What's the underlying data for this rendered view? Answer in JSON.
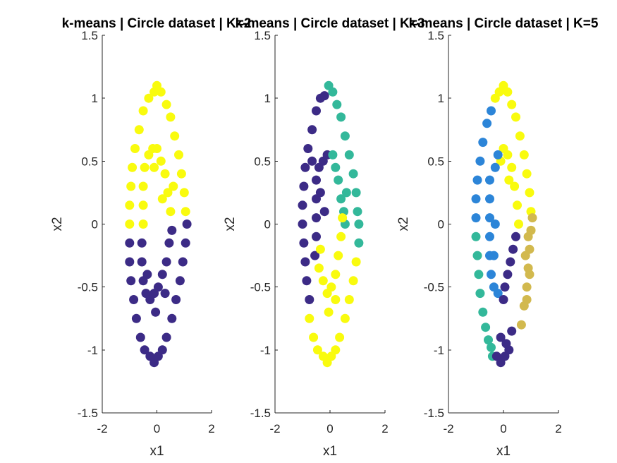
{
  "chart_data": [
    {
      "type": "scatter",
      "title": "k-means | Circle dataset | K=2",
      "xlabel": "x1",
      "ylabel": "x2",
      "xlim": [
        -2,
        2
      ],
      "ylim": [
        -1.5,
        1.5
      ],
      "xticks": [
        "-2",
        "0",
        "2"
      ],
      "yticks": [
        "-1.5",
        "-1",
        "-0.5",
        "0",
        "0.5",
        "1",
        "1.5"
      ],
      "grid": false,
      "series": [
        {
          "color": "#3c2b86",
          "points": [
            [
              -1.0,
              -0.15
            ],
            [
              -1.0,
              -0.3
            ],
            [
              -0.95,
              -0.45
            ],
            [
              -0.85,
              -0.6
            ],
            [
              -0.75,
              -0.75
            ],
            [
              -0.6,
              -0.9
            ],
            [
              -0.45,
              -1.0
            ],
            [
              -0.25,
              -1.05
            ],
            [
              -0.1,
              -1.1
            ],
            [
              0.05,
              -1.05
            ],
            [
              0.2,
              -1.0
            ],
            [
              0.35,
              -0.9
            ],
            [
              0.55,
              -0.75
            ],
            [
              0.7,
              -0.6
            ],
            [
              0.85,
              -0.45
            ],
            [
              0.95,
              -0.3
            ],
            [
              1.05,
              -0.15
            ],
            [
              1.1,
              0.0
            ],
            [
              -0.55,
              -0.15
            ],
            [
              -0.55,
              -0.3
            ],
            [
              -0.5,
              -0.45
            ],
            [
              -0.4,
              -0.55
            ],
            [
              -0.25,
              -0.6
            ],
            [
              -0.1,
              -0.55
            ],
            [
              0.05,
              -0.5
            ],
            [
              0.2,
              -0.4
            ],
            [
              0.35,
              -0.3
            ],
            [
              0.45,
              -0.15
            ],
            [
              0.55,
              -0.05
            ],
            [
              -0.05,
              -0.7
            ],
            [
              0.3,
              -0.55
            ],
            [
              -0.35,
              -0.4
            ]
          ]
        },
        {
          "color": "#f9fb0e",
          "points": [
            [
              -1.0,
              0.0
            ],
            [
              -1.0,
              0.15
            ],
            [
              -0.95,
              0.3
            ],
            [
              -0.9,
              0.45
            ],
            [
              -0.8,
              0.6
            ],
            [
              -0.65,
              0.75
            ],
            [
              -0.5,
              0.9
            ],
            [
              -0.3,
              1.0
            ],
            [
              -0.1,
              1.05
            ],
            [
              0.0,
              1.1
            ],
            [
              0.15,
              1.05
            ],
            [
              0.35,
              0.95
            ],
            [
              0.5,
              0.85
            ],
            [
              0.65,
              0.7
            ],
            [
              0.8,
              0.55
            ],
            [
              0.9,
              0.4
            ],
            [
              1.0,
              0.25
            ],
            [
              1.05,
              0.1
            ],
            [
              -0.5,
              0.0
            ],
            [
              -0.5,
              0.15
            ],
            [
              -0.5,
              0.3
            ],
            [
              -0.45,
              0.45
            ],
            [
              -0.3,
              0.55
            ],
            [
              -0.15,
              0.6
            ],
            [
              0.0,
              0.6
            ],
            [
              0.15,
              0.5
            ],
            [
              0.3,
              0.4
            ],
            [
              0.4,
              0.25
            ],
            [
              0.5,
              0.1
            ],
            [
              -0.1,
              0.45
            ],
            [
              0.2,
              0.2
            ],
            [
              0.6,
              0.3
            ]
          ]
        }
      ]
    },
    {
      "type": "scatter",
      "title": "k-means | Circle dataset | K=3",
      "xlabel": "x1",
      "ylabel": "x2",
      "xlim": [
        -2,
        2
      ],
      "ylim": [
        -1.5,
        1.5
      ],
      "xticks": [
        "-2",
        "0",
        "2"
      ],
      "yticks": [
        "-1.5",
        "-1",
        "-0.5",
        "0",
        "0.5",
        "1",
        "1.5"
      ],
      "grid": false,
      "series": [
        {
          "color": "#3c2b86",
          "points": [
            [
              -0.9,
              -0.3
            ],
            [
              -0.95,
              -0.15
            ],
            [
              -1.0,
              0.0
            ],
            [
              -1.0,
              0.15
            ],
            [
              -0.95,
              0.3
            ],
            [
              -0.9,
              0.45
            ],
            [
              -0.8,
              0.6
            ],
            [
              -0.65,
              0.75
            ],
            [
              -0.5,
              0.9
            ],
            [
              -0.35,
              1.0
            ],
            [
              -0.2,
              1.02
            ],
            [
              -0.85,
              -0.45
            ],
            [
              -0.75,
              -0.6
            ],
            [
              -0.5,
              -0.1
            ],
            [
              -0.5,
              0.05
            ],
            [
              -0.5,
              0.2
            ],
            [
              -0.5,
              0.35
            ],
            [
              -0.4,
              0.45
            ],
            [
              -0.25,
              0.5
            ],
            [
              -0.1,
              0.55
            ],
            [
              -0.35,
              0.25
            ],
            [
              -0.2,
              0.1
            ],
            [
              -0.55,
              -0.25
            ],
            [
              -0.65,
              0.5
            ]
          ]
        },
        {
          "color": "#33b89a",
          "points": [
            [
              -0.05,
              1.1
            ],
            [
              0.1,
              1.05
            ],
            [
              0.25,
              0.95
            ],
            [
              0.4,
              0.85
            ],
            [
              0.55,
              0.7
            ],
            [
              0.7,
              0.55
            ],
            [
              0.85,
              0.4
            ],
            [
              0.95,
              0.25
            ],
            [
              1.0,
              0.1
            ],
            [
              1.05,
              0.0
            ],
            [
              1.05,
              -0.15
            ],
            [
              0.1,
              0.55
            ],
            [
              0.2,
              0.45
            ],
            [
              0.3,
              0.35
            ],
            [
              0.4,
              0.2
            ],
            [
              0.5,
              0.1
            ],
            [
              0.55,
              0.0
            ],
            [
              0.6,
              0.25
            ]
          ]
        },
        {
          "color": "#f9fb0e",
          "points": [
            [
              -0.75,
              -0.75
            ],
            [
              -0.6,
              -0.9
            ],
            [
              -0.45,
              -1.0
            ],
            [
              -0.25,
              -1.05
            ],
            [
              -0.1,
              -1.1
            ],
            [
              0.05,
              -1.05
            ],
            [
              0.2,
              -1.0
            ],
            [
              0.35,
              -0.9
            ],
            [
              0.55,
              -0.75
            ],
            [
              0.7,
              -0.6
            ],
            [
              0.85,
              -0.45
            ],
            [
              0.95,
              -0.3
            ],
            [
              -0.4,
              -0.35
            ],
            [
              -0.25,
              -0.45
            ],
            [
              -0.1,
              -0.55
            ],
            [
              0.05,
              -0.5
            ],
            [
              0.2,
              -0.4
            ],
            [
              0.3,
              -0.25
            ],
            [
              0.4,
              -0.1
            ],
            [
              0.45,
              0.05
            ],
            [
              -0.05,
              -0.7
            ],
            [
              0.2,
              -0.6
            ],
            [
              -0.35,
              -0.2
            ]
          ]
        }
      ]
    },
    {
      "type": "scatter",
      "title": "k-means | Circle dataset | K=5",
      "xlabel": "x1",
      "ylabel": "x2",
      "xlim": [
        -2,
        2
      ],
      "ylim": [
        -1.5,
        1.5
      ],
      "xticks": [
        "-2",
        "0",
        "2"
      ],
      "yticks": [
        "-1.5",
        "-1",
        "-0.5",
        "0",
        "0.5",
        "1",
        "1.5"
      ],
      "grid": false,
      "series": [
        {
          "color": "#f9fb0e",
          "points": [
            [
              -0.3,
              1.0
            ],
            [
              -0.15,
              1.05
            ],
            [
              0.0,
              1.1
            ],
            [
              0.15,
              1.05
            ],
            [
              0.3,
              0.95
            ],
            [
              0.45,
              0.85
            ],
            [
              0.6,
              0.7
            ],
            [
              0.75,
              0.55
            ],
            [
              0.85,
              0.4
            ],
            [
              0.95,
              0.25
            ],
            [
              1.0,
              0.1
            ],
            [
              1.0,
              -0.05
            ],
            [
              0.0,
              0.6
            ],
            [
              0.15,
              0.55
            ],
            [
              0.3,
              0.45
            ],
            [
              0.4,
              0.3
            ],
            [
              0.5,
              0.15
            ],
            [
              0.55,
              0.0
            ],
            [
              -0.1,
              0.5
            ],
            [
              0.2,
              0.35
            ]
          ]
        },
        {
          "color": "#2c85d8",
          "points": [
            [
              -0.45,
              0.9
            ],
            [
              -0.6,
              0.8
            ],
            [
              -0.75,
              0.65
            ],
            [
              -0.85,
              0.5
            ],
            [
              -0.95,
              0.35
            ],
            [
              -1.0,
              0.2
            ],
            [
              -1.0,
              0.05
            ],
            [
              -0.5,
              0.35
            ],
            [
              -0.5,
              0.2
            ],
            [
              -0.5,
              0.05
            ],
            [
              -0.5,
              -0.1
            ],
            [
              -0.5,
              -0.25
            ],
            [
              -0.45,
              -0.4
            ],
            [
              -0.35,
              -0.5
            ],
            [
              -0.2,
              -0.55
            ],
            [
              -0.3,
              0.45
            ],
            [
              -0.2,
              0.55
            ],
            [
              -0.35,
              -0.25
            ],
            [
              -0.3,
              0.0
            ]
          ]
        },
        {
          "color": "#33b89a",
          "points": [
            [
              -1.0,
              -0.1
            ],
            [
              -0.95,
              -0.25
            ],
            [
              -0.9,
              -0.4
            ],
            [
              -0.85,
              -0.55
            ],
            [
              -0.75,
              -0.7
            ],
            [
              -0.65,
              -0.82
            ],
            [
              -0.55,
              -0.92
            ],
            [
              -0.45,
              -0.98
            ],
            [
              -0.4,
              -1.05
            ]
          ]
        },
        {
          "color": "#3c2b86",
          "points": [
            [
              -0.25,
              -1.05
            ],
            [
              -0.1,
              -1.1
            ],
            [
              0.05,
              -1.05
            ],
            [
              0.2,
              -1.0
            ],
            [
              0.3,
              -0.85
            ],
            [
              0.1,
              -0.95
            ],
            [
              -0.1,
              -0.9
            ],
            [
              0.05,
              -0.5
            ],
            [
              0.15,
              -0.4
            ],
            [
              0.25,
              -0.3
            ],
            [
              0.35,
              -0.2
            ],
            [
              0.45,
              -0.1
            ],
            [
              0.0,
              -0.6
            ]
          ]
        },
        {
          "color": "#d2b94e",
          "points": [
            [
              0.65,
              -0.8
            ],
            [
              0.75,
              -0.65
            ],
            [
              0.85,
              -0.5
            ],
            [
              0.9,
              -0.35
            ],
            [
              0.95,
              -0.2
            ],
            [
              1.0,
              -0.05
            ],
            [
              1.05,
              0.05
            ],
            [
              0.9,
              -0.1
            ],
            [
              0.8,
              -0.25
            ],
            [
              0.85,
              -0.6
            ],
            [
              0.95,
              -0.4
            ]
          ]
        }
      ]
    }
  ]
}
